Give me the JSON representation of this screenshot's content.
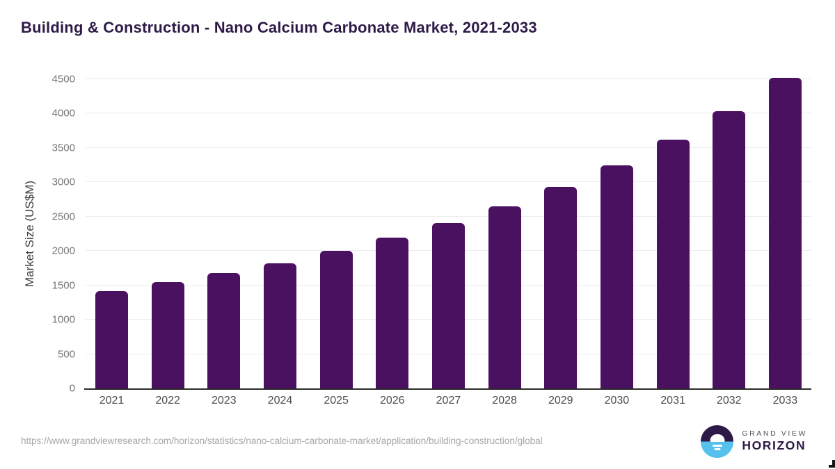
{
  "title": "Building & Construction - Nano Calcium Carbonate Market, 2021-2033",
  "colors": {
    "bar": "#4A1160",
    "title": "#2E1A47",
    "grid": "#ECECEC",
    "axis_line": "#2B2B2B",
    "y_tick": "#757575",
    "x_tick": "#4D4D4D",
    "axis_title": "#3F3F3F",
    "url": "#A6A6A6",
    "logo_dark": "#2E1A47",
    "logo_blue": "#56C1EC",
    "logo_gray": "#514D5C"
  },
  "chart_data": {
    "type": "bar",
    "title": "Building & Construction - Nano Calcium Carbonate Market, 2021-2033",
    "categories": [
      "2021",
      "2022",
      "2023",
      "2024",
      "2025",
      "2026",
      "2027",
      "2028",
      "2029",
      "2030",
      "2031",
      "2032",
      "2033"
    ],
    "values": [
      1420,
      1550,
      1680,
      1820,
      2000,
      2190,
      2410,
      2650,
      2930,
      3250,
      3620,
      4040,
      4520
    ],
    "xlabel": "",
    "ylabel": "Market Size (US$M)",
    "ylim": [
      0,
      4500
    ],
    "yticks": [
      0,
      500,
      1000,
      1500,
      2000,
      2500,
      3000,
      3500,
      4000,
      4500
    ],
    "grid": "horizontal-only",
    "legend": "none",
    "bar_color": "#4A1160"
  },
  "footer": {
    "source_url": "https://www.grandviewresearch.com/horizon/statistics/nano-calcium-carbonate-market/application/building-construction/global",
    "logo": {
      "line1": "GRAND VIEW",
      "line2": "HORIZON",
      "icon": "horizon-sunrise-icon"
    }
  }
}
